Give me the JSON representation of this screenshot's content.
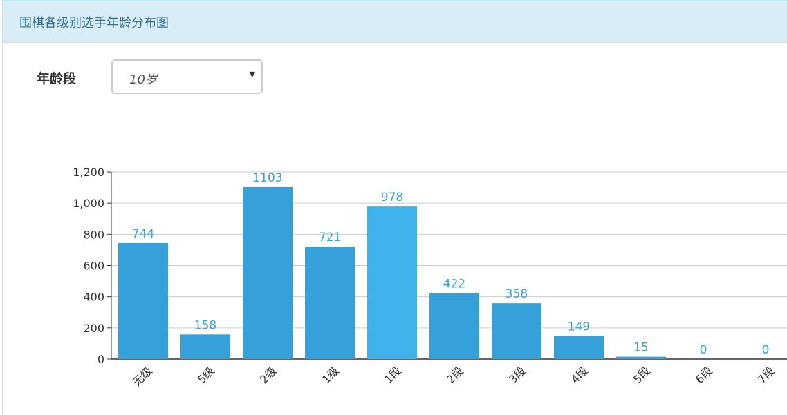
{
  "header": {
    "title": "围棋各级别选手年龄分布图"
  },
  "filter": {
    "label": "年龄段",
    "selected": "10岁",
    "caret_icon": "caret-down-icon"
  },
  "colors": {
    "bar": "#36a0da",
    "bar_highlight": "#3fb1eb",
    "label": "#3aa3da",
    "grid": "#cccccc",
    "heading_bg": "#d9edf7",
    "title_text": "#31708f"
  },
  "chart_data": {
    "type": "bar",
    "title": "",
    "xlabel": "",
    "ylabel": "",
    "categories": [
      "无级",
      "5级",
      "2级",
      "1级",
      "1段",
      "2段",
      "3段",
      "4段",
      "5段",
      "6段",
      "7段"
    ],
    "values": [
      744,
      158,
      1103,
      721,
      978,
      422,
      358,
      149,
      15,
      0,
      0
    ],
    "value_labels": [
      "744",
      "158",
      "1103",
      "721",
      "978",
      "422",
      "358",
      "149",
      "15",
      "0",
      "0"
    ],
    "highlighted_index": 4,
    "ylim": [
      0,
      1200
    ],
    "yticks": [
      0,
      200,
      400,
      600,
      800,
      1000,
      1200
    ],
    "ytick_labels": [
      "0",
      "200",
      "400",
      "600",
      "800",
      "1,000",
      "1,200"
    ],
    "grid": true,
    "x_label_rotation": "-45deg"
  }
}
